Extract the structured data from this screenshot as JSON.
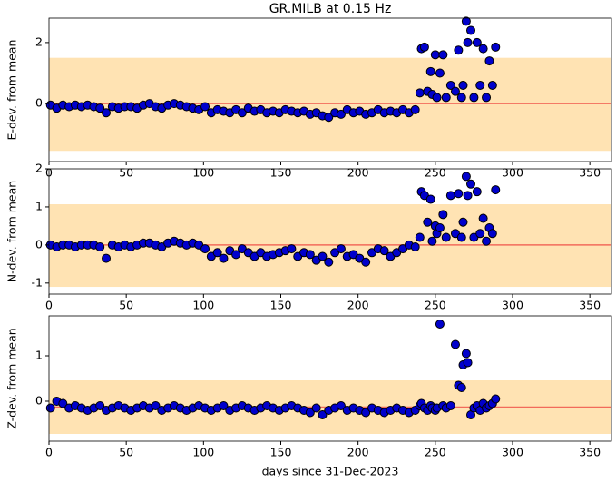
{
  "chart_data": [
    {
      "type": "scatter",
      "title": "GR.MILB at 0.15 Hz",
      "ylabel": "E-dev. from mean",
      "xlim": [
        0,
        364
      ],
      "xticks": [
        0,
        50,
        100,
        150,
        200,
        250,
        300,
        350
      ],
      "ylim": [
        -1.9,
        2.8
      ],
      "yticks": [
        0,
        2
      ],
      "band": [
        -1.55,
        1.5
      ],
      "band_color": "#ffe3b3",
      "mean": 0,
      "mean_color": "#f26b5b",
      "color": "#0000cc",
      "edge_color": "#000000",
      "x": [
        1,
        5,
        9,
        13,
        17,
        21,
        25,
        29,
        33,
        37,
        41,
        45,
        49,
        53,
        57,
        61,
        65,
        69,
        73,
        77,
        81,
        85,
        89,
        93,
        97,
        101,
        105,
        109,
        113,
        117,
        121,
        125,
        129,
        133,
        137,
        141,
        145,
        149,
        153,
        157,
        161,
        165,
        169,
        173,
        177,
        181,
        185,
        189,
        193,
        197,
        201,
        205,
        209,
        213,
        217,
        221,
        225,
        229,
        233,
        237,
        240,
        241,
        243,
        245,
        247,
        248,
        250,
        251,
        253,
        255,
        257,
        260,
        263,
        265,
        267,
        268,
        270,
        271,
        273,
        275,
        277,
        279,
        281,
        283,
        285,
        287,
        289
      ],
      "values": [
        -0.05,
        -0.15,
        -0.05,
        -0.1,
        -0.05,
        -0.1,
        -0.05,
        -0.1,
        -0.15,
        -0.3,
        -0.1,
        -0.15,
        -0.1,
        -0.1,
        -0.15,
        -0.05,
        0.0,
        -0.1,
        -0.15,
        -0.05,
        0.0,
        -0.05,
        -0.1,
        -0.15,
        -0.2,
        -0.1,
        -0.3,
        -0.2,
        -0.25,
        -0.3,
        -0.2,
        -0.3,
        -0.15,
        -0.25,
        -0.2,
        -0.3,
        -0.25,
        -0.3,
        -0.2,
        -0.25,
        -0.3,
        -0.25,
        -0.35,
        -0.3,
        -0.4,
        -0.45,
        -0.3,
        -0.35,
        -0.2,
        -0.3,
        -0.25,
        -0.35,
        -0.3,
        -0.2,
        -0.3,
        -0.25,
        -0.3,
        -0.2,
        -0.3,
        -0.2,
        0.35,
        1.8,
        1.85,
        0.4,
        1.05,
        0.3,
        1.6,
        0.2,
        1.0,
        1.6,
        0.2,
        0.6,
        0.4,
        1.75,
        0.2,
        0.6,
        2.7,
        2.0,
        2.4,
        0.2,
        2.0,
        0.6,
        1.8,
        0.2,
        1.4,
        0.6,
        1.85
      ]
    },
    {
      "type": "scatter",
      "ylabel": "N-dev. from mean",
      "xlim": [
        0,
        364
      ],
      "xticks": [
        0,
        50,
        100,
        150,
        200,
        250,
        300,
        350
      ],
      "ylim": [
        -1.29,
        2.0
      ],
      "yticks": [
        -1,
        0,
        1,
        2
      ],
      "band": [
        -1.1,
        1.07
      ],
      "band_color": "#ffe3b3",
      "mean": 0,
      "mean_color": "#f26b5b",
      "color": "#0000cc",
      "edge_color": "#000000",
      "x": [
        1,
        5,
        9,
        13,
        17,
        21,
        25,
        29,
        33,
        37,
        41,
        45,
        49,
        53,
        57,
        61,
        65,
        69,
        73,
        77,
        81,
        85,
        89,
        93,
        97,
        101,
        105,
        109,
        113,
        117,
        121,
        125,
        129,
        133,
        137,
        141,
        145,
        149,
        153,
        157,
        161,
        165,
        169,
        173,
        177,
        181,
        185,
        189,
        193,
        197,
        201,
        205,
        209,
        213,
        217,
        221,
        225,
        229,
        233,
        237,
        240,
        241,
        243,
        245,
        247,
        248,
        250,
        251,
        253,
        255,
        257,
        260,
        263,
        265,
        267,
        268,
        270,
        271,
        273,
        275,
        277,
        279,
        281,
        283,
        285,
        287,
        289
      ],
      "values": [
        0.0,
        -0.05,
        0.0,
        0.0,
        -0.05,
        0.0,
        0.0,
        0.0,
        -0.05,
        -0.35,
        0.0,
        -0.05,
        0.0,
        -0.05,
        0.0,
        0.05,
        0.05,
        0.0,
        -0.05,
        0.05,
        0.1,
        0.05,
        0.0,
        0.05,
        0.0,
        -0.1,
        -0.3,
        -0.2,
        -0.35,
        -0.15,
        -0.25,
        -0.1,
        -0.2,
        -0.3,
        -0.2,
        -0.3,
        -0.25,
        -0.2,
        -0.15,
        -0.1,
        -0.3,
        -0.2,
        -0.25,
        -0.4,
        -0.3,
        -0.45,
        -0.2,
        -0.1,
        -0.3,
        -0.25,
        -0.35,
        -0.45,
        -0.2,
        -0.1,
        -0.15,
        -0.3,
        -0.2,
        -0.1,
        0.0,
        -0.05,
        0.2,
        1.4,
        1.3,
        0.6,
        1.2,
        0.1,
        0.5,
        0.3,
        0.45,
        0.8,
        0.2,
        1.3,
        0.3,
        1.35,
        0.2,
        0.6,
        1.8,
        1.3,
        1.6,
        0.2,
        1.4,
        0.3,
        0.7,
        0.1,
        0.45,
        0.3,
        1.45
      ]
    },
    {
      "type": "scatter",
      "ylabel": "Z-dev. from mean",
      "xlabel": "days since 31-Dec-2023",
      "xlim": [
        0,
        364
      ],
      "xticks": [
        0,
        50,
        100,
        150,
        200,
        250,
        300,
        350
      ],
      "ylim": [
        -0.88,
        1.88
      ],
      "yticks": [
        0,
        1
      ],
      "band": [
        -0.72,
        0.46
      ],
      "band_color": "#ffe3b3",
      "mean": -0.13,
      "mean_color": "#f26b5b",
      "color": "#0000cc",
      "edge_color": "#000000",
      "x": [
        1,
        5,
        9,
        13,
        17,
        21,
        25,
        29,
        33,
        37,
        41,
        45,
        49,
        53,
        57,
        61,
        65,
        69,
        73,
        77,
        81,
        85,
        89,
        93,
        97,
        101,
        105,
        109,
        113,
        117,
        121,
        125,
        129,
        133,
        137,
        141,
        145,
        149,
        153,
        157,
        161,
        165,
        169,
        173,
        177,
        181,
        185,
        189,
        193,
        197,
        201,
        205,
        209,
        213,
        217,
        221,
        225,
        229,
        233,
        237,
        240,
        241,
        243,
        245,
        247,
        248,
        250,
        251,
        253,
        255,
        257,
        260,
        263,
        265,
        267,
        268,
        270,
        271,
        273,
        275,
        277,
        279,
        281,
        283,
        285,
        287,
        289
      ],
      "values": [
        -0.15,
        0.0,
        -0.05,
        -0.15,
        -0.1,
        -0.15,
        -0.2,
        -0.15,
        -0.1,
        -0.2,
        -0.15,
        -0.1,
        -0.15,
        -0.2,
        -0.15,
        -0.1,
        -0.15,
        -0.1,
        -0.2,
        -0.15,
        -0.1,
        -0.15,
        -0.2,
        -0.15,
        -0.1,
        -0.15,
        -0.2,
        -0.15,
        -0.1,
        -0.2,
        -0.15,
        -0.1,
        -0.15,
        -0.2,
        -0.15,
        -0.1,
        -0.15,
        -0.2,
        -0.15,
        -0.1,
        -0.15,
        -0.2,
        -0.25,
        -0.15,
        -0.3,
        -0.2,
        -0.15,
        -0.1,
        -0.2,
        -0.15,
        -0.2,
        -0.25,
        -0.15,
        -0.2,
        -0.25,
        -0.2,
        -0.15,
        -0.2,
        -0.25,
        -0.2,
        -0.1,
        -0.05,
        -0.15,
        -0.2,
        -0.1,
        -0.15,
        -0.2,
        -0.15,
        1.7,
        -0.1,
        -0.15,
        -0.1,
        1.25,
        0.35,
        0.3,
        0.8,
        1.05,
        0.85,
        -0.3,
        -0.15,
        -0.1,
        -0.2,
        -0.05,
        -0.15,
        -0.1,
        -0.05,
        0.05
      ]
    }
  ]
}
